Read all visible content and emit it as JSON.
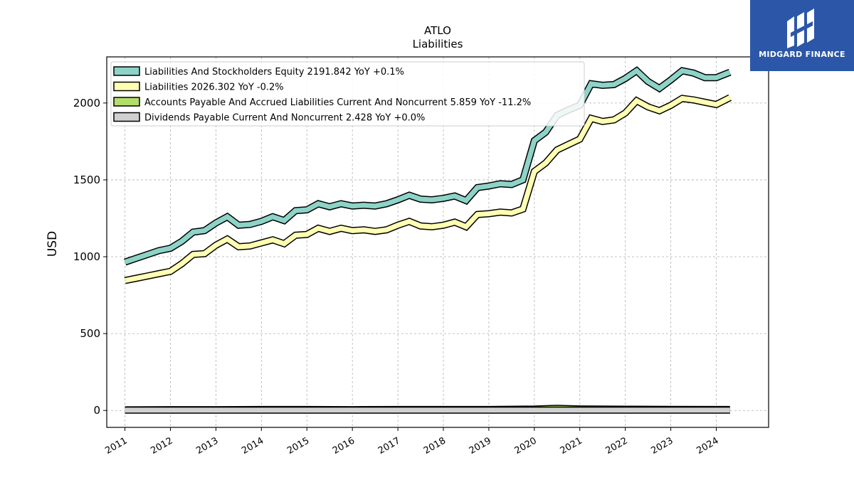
{
  "chart_data": {
    "type": "line",
    "title": "ATLO",
    "subtitle": "Liabilities",
    "xlabel": "",
    "ylabel": "USD",
    "ylim": [
      -110,
      2300
    ],
    "xlim": [
      2010.6,
      2025.15
    ],
    "yticks": [
      0,
      500,
      1000,
      1500,
      2000
    ],
    "xticks": [
      2011,
      2012,
      2013,
      2014,
      2015,
      2016,
      2017,
      2018,
      2019,
      2020,
      2021,
      2022,
      2023,
      2024
    ],
    "grid": true,
    "legend_position": "top-left",
    "series": [
      {
        "name": "Liabilities And Stockholders Equity",
        "legend_label": "Liabilities And Stockholders Equity  2191.842 YoY +0.1%",
        "color": "#8dd3c7",
        "x": [
          2011.0,
          2011.25,
          2011.5,
          2011.75,
          2012.0,
          2012.25,
          2012.5,
          2012.75,
          2013.0,
          2013.25,
          2013.5,
          2013.75,
          2014.0,
          2014.25,
          2014.5,
          2014.75,
          2015.0,
          2015.25,
          2015.5,
          2015.75,
          2016.0,
          2016.25,
          2016.5,
          2016.75,
          2017.0,
          2017.25,
          2017.5,
          2017.75,
          2018.0,
          2018.25,
          2018.5,
          2018.75,
          2019.0,
          2019.25,
          2019.5,
          2019.75,
          2020.0,
          2020.25,
          2020.5,
          2020.75,
          2021.0,
          2021.25,
          2021.5,
          2021.75,
          2022.0,
          2022.25,
          2022.5,
          2022.75,
          2023.0,
          2023.25,
          2023.5,
          2023.75,
          2024.0,
          2024.3
        ],
        "values": [
          965,
          990,
          1015,
          1040,
          1055,
          1100,
          1160,
          1170,
          1220,
          1260,
          1205,
          1210,
          1230,
          1260,
          1235,
          1300,
          1305,
          1345,
          1325,
          1345,
          1330,
          1335,
          1330,
          1345,
          1370,
          1400,
          1375,
          1370,
          1380,
          1395,
          1365,
          1450,
          1460,
          1475,
          1470,
          1500,
          1755,
          1810,
          1920,
          1955,
          1985,
          2125,
          2115,
          2120,
          2160,
          2210,
          2140,
          2095,
          2150,
          2210,
          2195,
          2165,
          2165,
          2200
        ]
      },
      {
        "name": "Liabilities",
        "legend_label": "Liabilities  2026.302 YoY -0.2%",
        "color": "#ffffb3",
        "x": [
          2011.0,
          2011.25,
          2011.5,
          2011.75,
          2012.0,
          2012.25,
          2012.5,
          2012.75,
          2013.0,
          2013.25,
          2013.5,
          2013.75,
          2014.0,
          2014.25,
          2014.5,
          2014.75,
          2015.0,
          2015.25,
          2015.5,
          2015.75,
          2016.0,
          2016.25,
          2016.5,
          2016.75,
          2017.0,
          2017.25,
          2017.5,
          2017.75,
          2018.0,
          2018.25,
          2018.5,
          2018.75,
          2019.0,
          2019.25,
          2019.5,
          2019.75,
          2020.0,
          2020.25,
          2020.5,
          2020.75,
          2021.0,
          2021.25,
          2021.5,
          2021.75,
          2022.0,
          2022.25,
          2022.5,
          2022.75,
          2023.0,
          2023.25,
          2023.5,
          2023.75,
          2024.0,
          2024.3
        ],
        "values": [
          845,
          860,
          875,
          890,
          905,
          955,
          1015,
          1020,
          1075,
          1115,
          1065,
          1070,
          1090,
          1110,
          1085,
          1140,
          1145,
          1185,
          1165,
          1185,
          1170,
          1175,
          1165,
          1175,
          1205,
          1230,
          1200,
          1195,
          1205,
          1225,
          1195,
          1275,
          1280,
          1290,
          1285,
          1310,
          1555,
          1610,
          1695,
          1730,
          1765,
          1900,
          1880,
          1890,
          1935,
          2015,
          1975,
          1950,
          1985,
          2030,
          2020,
          2005,
          1990,
          2035
        ]
      },
      {
        "name": "Accounts Payable And Accrued Liabilities Current And Noncurrent",
        "legend_label": "Accounts Payable And Accrued Liabilities Current And Noncurrent  5.859 YoY -11.2%",
        "color": "#b3de69",
        "x": [
          2011.0,
          2012.0,
          2013.0,
          2014.0,
          2015.0,
          2016.0,
          2017.0,
          2018.0,
          2019.0,
          2020.0,
          2020.5,
          2021.0,
          2022.0,
          2023.0,
          2024.3
        ],
        "values": [
          4,
          5,
          5,
          6,
          6,
          5,
          6,
          6,
          6,
          9,
          14,
          10,
          8,
          7,
          6
        ]
      },
      {
        "name": "Dividends Payable Current And Noncurrent",
        "legend_label": "Dividends Payable Current And Noncurrent  2.428 YoY +0.0%",
        "color": "#d0d0d0",
        "x": [
          2011.0,
          2012.0,
          2013.0,
          2014.0,
          2015.0,
          2016.0,
          2017.0,
          2018.0,
          2019.0,
          2020.0,
          2021.0,
          2022.0,
          2023.0,
          2024.3
        ],
        "values": [
          2,
          2,
          2,
          2,
          2,
          2,
          2,
          2,
          2,
          2,
          2,
          2,
          2,
          2
        ]
      }
    ]
  },
  "logo": {
    "text": "MIDGARD FINANCE",
    "background": "#2c57a8"
  }
}
